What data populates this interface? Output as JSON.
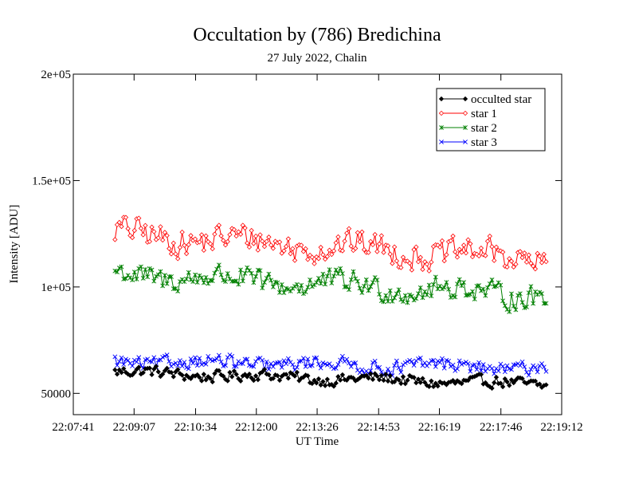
{
  "chart_data": {
    "type": "line",
    "title": "Occultation by (786) Bredichina",
    "subtitle": "27 July 2022, Chalin",
    "xlabel": "UT Time",
    "ylabel": "Intensity [ADU]",
    "x_tick_labels": [
      "22:07:41",
      "22:09:07",
      "22:10:34",
      "22:12:00",
      "22:13:26",
      "22:14:53",
      "22:16:19",
      "22:17:46",
      "22:19:12"
    ],
    "y_tick_labels": [
      "50000",
      "1e+05",
      "1.5e+05",
      "2e+05"
    ],
    "xlim": [
      "22:07:41",
      "22:19:12"
    ],
    "ylim": [
      40000,
      200000
    ],
    "x_start": "22:08:40",
    "x_end": "22:18:50",
    "samples": 200,
    "grid": false,
    "legend_position": "top-right",
    "series": [
      {
        "name": "occulted star",
        "color": "#000000",
        "marker": "diamond-filled",
        "base": 60000,
        "drift": -6000,
        "amp": 2500
      },
      {
        "name": "star 1",
        "color": "#ff0000",
        "marker": "diamond-open",
        "base": 125000,
        "drift": -12000,
        "amp": 6000
      },
      {
        "name": "star 2",
        "color": "#008000",
        "marker": "asterisk",
        "base": 106000,
        "drift": -10000,
        "amp": 5000
      },
      {
        "name": "star 3",
        "color": "#0000ff",
        "marker": "cross",
        "base": 65000,
        "drift": -3000,
        "amp": 3000
      }
    ]
  }
}
